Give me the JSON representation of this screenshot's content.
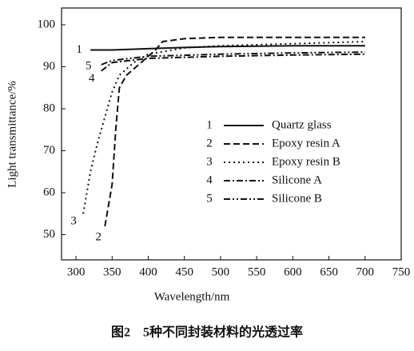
{
  "chart_data": {
    "type": "line",
    "xlabel": "Wavelength/nm",
    "ylabel": "Light transmittance/%",
    "caption": "图2　5种不同封装材料的光透过率",
    "xlim": [
      280,
      750
    ],
    "xticks": [
      300,
      350,
      400,
      450,
      500,
      550,
      600,
      650,
      700,
      750
    ],
    "ylim": [
      44,
      104
    ],
    "yticks": [
      50,
      60,
      70,
      80,
      90,
      100
    ],
    "series": [
      {
        "label": "1",
        "name": "Quartz glass",
        "color": "#111111",
        "style": "solid",
        "x": [
          320,
          350,
          400,
          450,
          500,
          600,
          700
        ],
        "values": [
          94,
          94,
          94.3,
          94.6,
          94.8,
          95,
          95
        ]
      },
      {
        "label": "2",
        "name": "Epoxy resin A",
        "color": "#111111",
        "style": "dashed",
        "x": [
          340,
          345,
          350,
          355,
          360,
          370,
          390,
          410,
          420,
          450,
          500,
          600,
          700
        ],
        "values": [
          52,
          57,
          62,
          75,
          85,
          88,
          91,
          94,
          96,
          96.7,
          97,
          97,
          97
        ]
      },
      {
        "label": "3",
        "name": "Epoxy resin B",
        "color": "#111111",
        "style": "dotted",
        "x": [
          310,
          320,
          330,
          340,
          350,
          360,
          380,
          400,
          450,
          500,
          600,
          700
        ],
        "values": [
          55,
          65,
          72,
          78,
          84,
          88,
          91,
          93,
          94.5,
          95,
          95.5,
          96
        ]
      },
      {
        "label": "4",
        "name": "Silicone A",
        "color": "#111111",
        "style": "dashdot",
        "x": [
          335,
          350,
          400,
          500,
          600,
          700
        ],
        "values": [
          89,
          91,
          92,
          92.5,
          92.8,
          93
        ]
      },
      {
        "label": "5",
        "name": "Silicone B",
        "color": "#111111",
        "style": "dashdotdot",
        "x": [
          335,
          350,
          400,
          500,
          600,
          700
        ],
        "values": [
          90.5,
          91.5,
          92.5,
          93,
          93.3,
          93.5
        ]
      }
    ]
  }
}
